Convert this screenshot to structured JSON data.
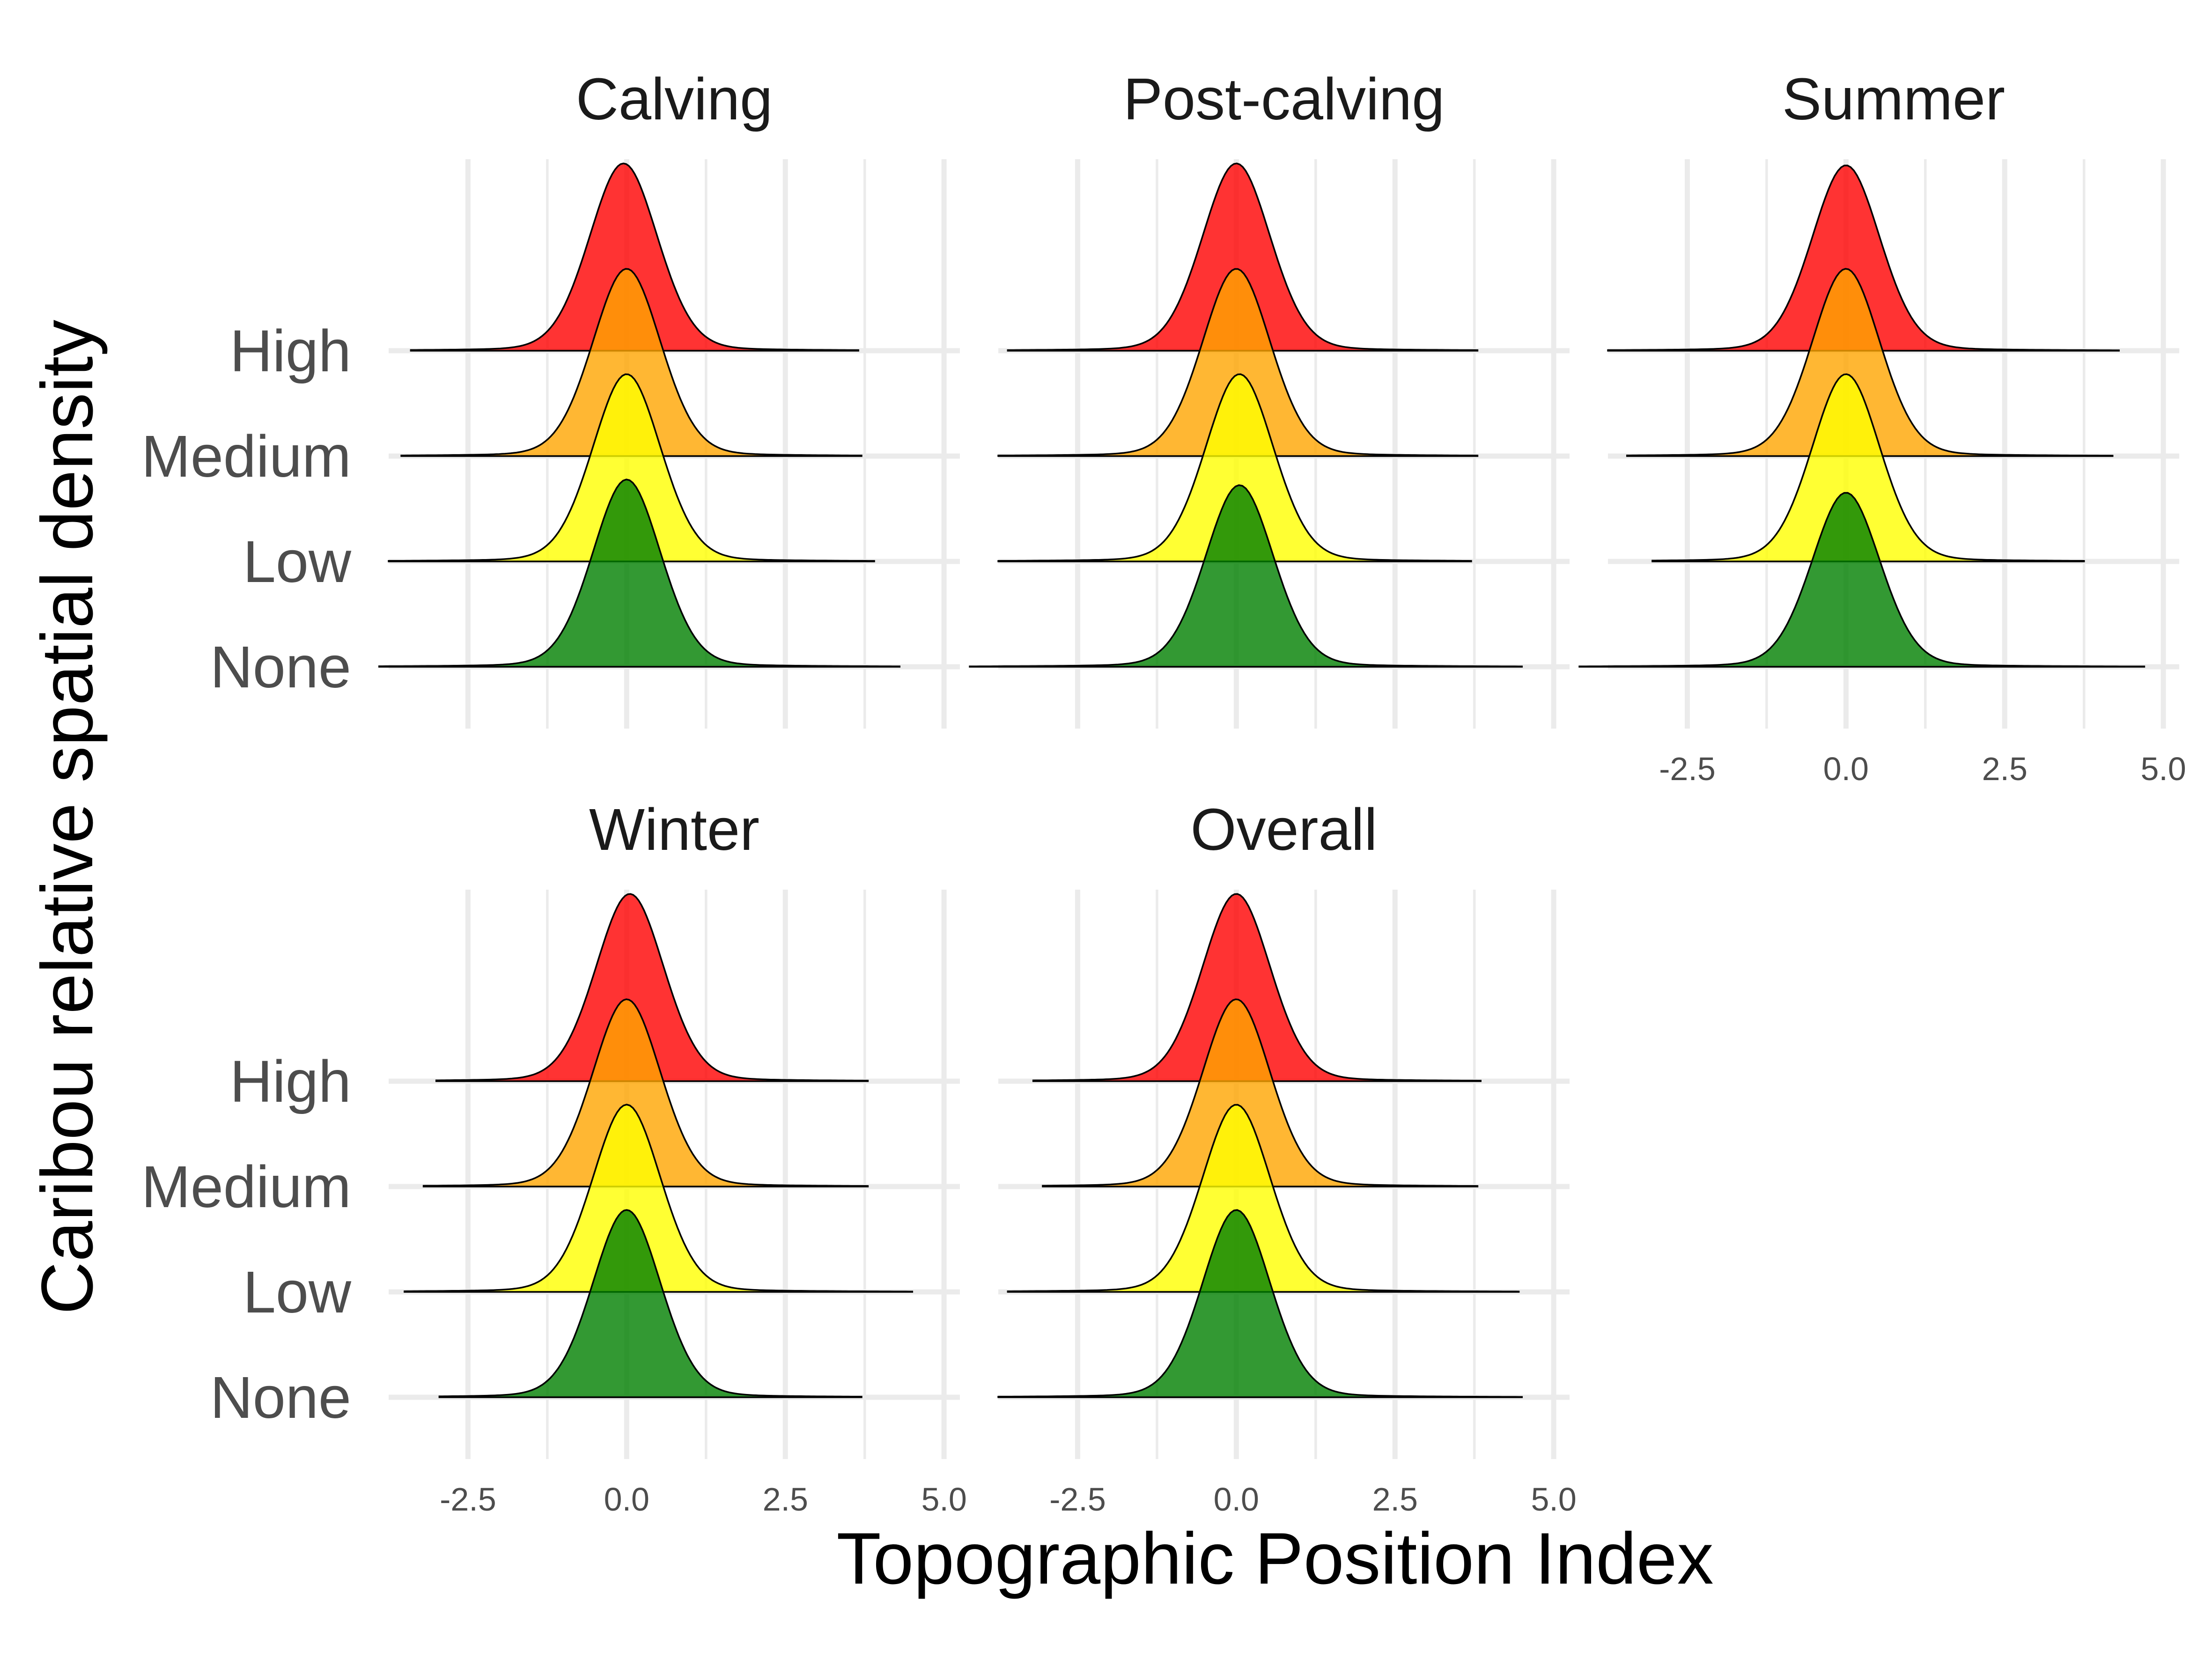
{
  "chart_data": {
    "type": "ridgeline",
    "xlabel": "Topographic Position Index",
    "ylabel": "Caribou relative spatial density",
    "xlim": [
      -3.75,
      5.25
    ],
    "xticks": [
      "-2.5",
      "0.0",
      "2.5",
      "5.0"
    ],
    "xtick_values": [
      -2.5,
      0,
      2.5,
      5
    ],
    "categories": [
      "None",
      "Low",
      "Medium",
      "High"
    ],
    "legend": "none",
    "grid": true,
    "colors": {
      "None": "#008000",
      "Low": "#ffff00",
      "Medium": "#ffa500",
      "High": "#ff0000"
    },
    "facets": [
      {
        "title": "Calving",
        "show_y_labels": true,
        "show_x_labels": false,
        "series": [
          {
            "category": "None",
            "center": 0.0,
            "x_range": [
              -3.9,
              4.3
            ],
            "peak": 1.0
          },
          {
            "category": "Low",
            "center": 0.0,
            "x_range": [
              -3.75,
              3.9
            ],
            "peak": 1.0
          },
          {
            "category": "Medium",
            "center": 0.0,
            "x_range": [
              -3.55,
              3.7
            ],
            "peak": 1.0
          },
          {
            "category": "High",
            "center": -0.05,
            "x_range": [
              -3.4,
              3.65
            ],
            "peak": 1.0
          }
        ]
      },
      {
        "title": "Post-calving",
        "show_y_labels": false,
        "show_x_labels": false,
        "series": [
          {
            "category": "None",
            "center": 0.05,
            "x_range": [
              -4.2,
              4.5
            ],
            "peak": 0.97
          },
          {
            "category": "Low",
            "center": 0.05,
            "x_range": [
              -3.75,
              3.7
            ],
            "peak": 1.0
          },
          {
            "category": "Medium",
            "center": 0.0,
            "x_range": [
              -3.75,
              3.8
            ],
            "peak": 1.0
          },
          {
            "category": "High",
            "center": 0.0,
            "x_range": [
              -3.6,
              3.8
            ],
            "peak": 1.0
          }
        ]
      },
      {
        "title": "Summer",
        "show_y_labels": false,
        "show_x_labels": true,
        "series": [
          {
            "category": "None",
            "center": 0.0,
            "x_range": [
              -4.2,
              4.7
            ],
            "peak": 0.93
          },
          {
            "category": "Low",
            "center": 0.0,
            "x_range": [
              -3.05,
              3.75
            ],
            "peak": 1.0
          },
          {
            "category": "Medium",
            "center": 0.0,
            "x_range": [
              -3.45,
              4.2
            ],
            "peak": 1.0
          },
          {
            "category": "High",
            "center": 0.0,
            "x_range": [
              -3.75,
              4.3
            ],
            "peak": 0.99
          }
        ]
      },
      {
        "title": "Winter",
        "show_y_labels": true,
        "show_x_labels": true,
        "series": [
          {
            "category": "None",
            "center": 0.0,
            "x_range": [
              -2.95,
              3.7
            ],
            "peak": 1.0
          },
          {
            "category": "Low",
            "center": 0.0,
            "x_range": [
              -3.5,
              4.5
            ],
            "peak": 1.0
          },
          {
            "category": "Medium",
            "center": 0.0,
            "x_range": [
              -3.2,
              3.8
            ],
            "peak": 1.0
          },
          {
            "category": "High",
            "center": 0.05,
            "x_range": [
              -3.0,
              3.8
            ],
            "peak": 1.0
          }
        ]
      },
      {
        "title": "Overall",
        "show_y_labels": false,
        "show_x_labels": true,
        "series": [
          {
            "category": "None",
            "center": 0.0,
            "x_range": [
              -3.75,
              4.5
            ],
            "peak": 1.0
          },
          {
            "category": "Low",
            "center": 0.0,
            "x_range": [
              -3.6,
              4.45
            ],
            "peak": 1.0
          },
          {
            "category": "Medium",
            "center": 0.0,
            "x_range": [
              -3.05,
              3.8
            ],
            "peak": 1.0
          },
          {
            "category": "High",
            "center": 0.0,
            "x_range": [
              -3.2,
              3.85
            ],
            "peak": 1.0
          }
        ]
      }
    ]
  }
}
